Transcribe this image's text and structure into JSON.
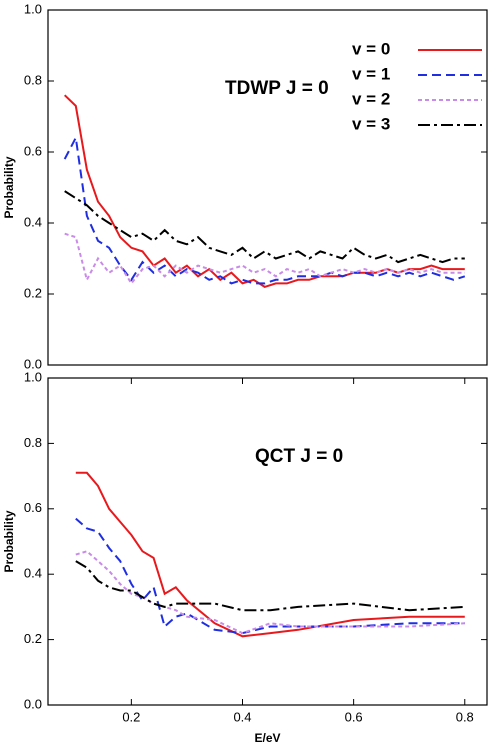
{
  "chart_data": [
    {
      "type": "line",
      "annotation": "TDWP  J = 0",
      "ylabel": "Probability",
      "x": [
        0.08,
        0.1,
        0.12,
        0.14,
        0.16,
        0.18,
        0.2,
        0.22,
        0.24,
        0.26,
        0.28,
        0.3,
        0.32,
        0.34,
        0.36,
        0.38,
        0.4,
        0.42,
        0.44,
        0.46,
        0.48,
        0.5,
        0.52,
        0.54,
        0.56,
        0.58,
        0.6,
        0.62,
        0.64,
        0.66,
        0.68,
        0.7,
        0.72,
        0.74,
        0.76,
        0.78,
        0.8
      ],
      "series": [
        {
          "name": "v = 0",
          "color": "#e8191d",
          "style": "solid",
          "values": [
            0.76,
            0.73,
            0.55,
            0.46,
            0.42,
            0.36,
            0.33,
            0.32,
            0.28,
            0.3,
            0.26,
            0.28,
            0.25,
            0.27,
            0.24,
            0.26,
            0.23,
            0.24,
            0.22,
            0.23,
            0.23,
            0.24,
            0.24,
            0.25,
            0.25,
            0.25,
            0.26,
            0.26,
            0.26,
            0.27,
            0.26,
            0.27,
            0.27,
            0.28,
            0.27,
            0.27,
            0.27
          ]
        },
        {
          "name": "v = 1",
          "color": "#1f2ee0",
          "style": "dashed",
          "values": [
            0.58,
            0.64,
            0.42,
            0.35,
            0.33,
            0.28,
            0.24,
            0.29,
            0.26,
            0.28,
            0.25,
            0.27,
            0.26,
            0.24,
            0.25,
            0.23,
            0.24,
            0.23,
            0.23,
            0.24,
            0.24,
            0.25,
            0.25,
            0.25,
            0.26,
            0.25,
            0.26,
            0.26,
            0.25,
            0.26,
            0.25,
            0.26,
            0.25,
            0.26,
            0.25,
            0.24,
            0.25
          ]
        },
        {
          "name": "v = 2",
          "color": "#c98be8",
          "style": "dotted",
          "values": [
            0.37,
            0.36,
            0.24,
            0.3,
            0.26,
            0.28,
            0.23,
            0.27,
            0.28,
            0.25,
            0.28,
            0.26,
            0.28,
            0.27,
            0.26,
            0.27,
            0.28,
            0.26,
            0.27,
            0.25,
            0.27,
            0.26,
            0.27,
            0.25,
            0.26,
            0.27,
            0.26,
            0.27,
            0.26,
            0.27,
            0.26,
            0.27,
            0.26,
            0.27,
            0.26,
            0.26,
            0.26
          ]
        },
        {
          "name": "v = 3",
          "color": "#000000",
          "style": "dashdot",
          "values": [
            0.49,
            0.47,
            0.45,
            0.42,
            0.4,
            0.38,
            0.36,
            0.37,
            0.35,
            0.38,
            0.35,
            0.34,
            0.36,
            0.33,
            0.32,
            0.31,
            0.33,
            0.3,
            0.32,
            0.3,
            0.31,
            0.32,
            0.3,
            0.32,
            0.31,
            0.3,
            0.33,
            0.31,
            0.3,
            0.31,
            0.29,
            0.3,
            0.31,
            0.3,
            0.29,
            0.3,
            0.3
          ]
        }
      ],
      "xlim": [
        0.05,
        0.84
      ],
      "ylim": [
        0,
        1
      ],
      "yticks": [
        {
          "value": 0,
          "label": "0.0"
        },
        0.2,
        0.4,
        0.6,
        0.8,
        {
          "value": 1,
          "label": "1.0"
        }
      ],
      "legend": "upper right"
    },
    {
      "type": "line",
      "annotation": "QCT J = 0",
      "ylabel": "Probability",
      "xlabel": "E/eV",
      "x": [
        0.1,
        0.12,
        0.14,
        0.16,
        0.18,
        0.2,
        0.22,
        0.24,
        0.26,
        0.28,
        0.3,
        0.35,
        0.4,
        0.45,
        0.5,
        0.6,
        0.7,
        0.8
      ],
      "series": [
        {
          "color": "#e8191d",
          "style": "solid",
          "values": [
            0.71,
            0.71,
            0.67,
            0.6,
            0.56,
            0.52,
            0.47,
            0.45,
            0.34,
            0.36,
            0.32,
            0.25,
            0.21,
            0.22,
            0.23,
            0.26,
            0.27,
            0.27
          ]
        },
        {
          "color": "#1f2ee0",
          "style": "dashed",
          "values": [
            0.57,
            0.54,
            0.53,
            0.48,
            0.44,
            0.37,
            0.32,
            0.36,
            0.24,
            0.27,
            0.28,
            0.23,
            0.22,
            0.24,
            0.24,
            0.24,
            0.25,
            0.25
          ]
        },
        {
          "color": "#c98be8",
          "style": "dotted",
          "values": [
            0.46,
            0.47,
            0.44,
            0.41,
            0.37,
            0.34,
            0.33,
            0.31,
            0.3,
            0.29,
            0.27,
            0.26,
            0.22,
            0.25,
            0.24,
            0.24,
            0.24,
            0.25
          ]
        },
        {
          "color": "#000000",
          "style": "dashdot",
          "values": [
            0.44,
            0.42,
            0.38,
            0.36,
            0.35,
            0.35,
            0.33,
            0.31,
            0.3,
            0.31,
            0.31,
            0.31,
            0.29,
            0.29,
            0.3,
            0.31,
            0.29,
            0.3
          ]
        }
      ],
      "xlim": [
        0.05,
        0.84
      ],
      "ylim": [
        0,
        1
      ],
      "xticks": [
        0.2,
        0.4,
        0.6,
        0.8
      ],
      "yticks": [
        {
          "value": 0,
          "label": "0.0"
        },
        0.2,
        0.4,
        0.6,
        0.8,
        {
          "value": 1,
          "label": "1.0"
        }
      ]
    }
  ]
}
